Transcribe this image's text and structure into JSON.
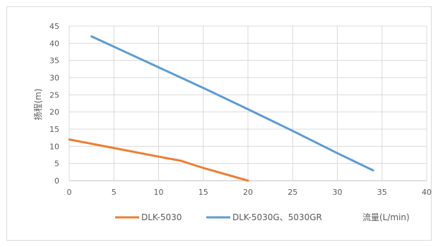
{
  "chart_data": {
    "type": "line",
    "title": "",
    "xlabel": "流量(L/min)",
    "ylabel": "扬程(m)",
    "xlim": [
      0,
      40
    ],
    "ylim": [
      0,
      45
    ],
    "xticks": [
      0,
      5,
      10,
      15,
      20,
      25,
      30,
      35,
      40
    ],
    "yticks": [
      0,
      5,
      10,
      15,
      20,
      25,
      30,
      35,
      40,
      45
    ],
    "grid": true,
    "legend_position": "bottom",
    "series": [
      {
        "name": "DLK-5030",
        "color": "#ED7D31",
        "x": [
          0,
          5,
          10,
          12.5,
          15,
          20
        ],
        "y": [
          12,
          9.5,
          7,
          5.8,
          3.7,
          0
        ]
      },
      {
        "name": "DLK-5030G、5030GR",
        "color": "#5B9BD5",
        "x": [
          2.5,
          5,
          10,
          15,
          20,
          25,
          30,
          34
        ],
        "y": [
          42,
          39,
          33,
          27,
          20.8,
          14.5,
          8,
          3
        ]
      }
    ]
  }
}
